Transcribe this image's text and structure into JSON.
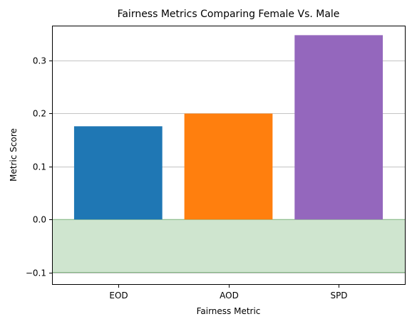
{
  "chart_data": {
    "type": "bar",
    "title": "Fairness Metrics Comparing Female Vs. Male",
    "xlabel": "Fairness Metric",
    "ylabel": "Metric Score",
    "categories": [
      "EOD",
      "AOD",
      "SPD"
    ],
    "values": [
      0.176,
      0.2,
      0.348
    ],
    "colors": [
      "#1f77b4",
      "#ff7f0e",
      "#9467bd"
    ],
    "ylim": [
      -0.122,
      0.366
    ],
    "yticks": [
      -0.1,
      0.0,
      0.1,
      0.2,
      0.3
    ],
    "ytick_labels": [
      "−0.1",
      "0.0",
      "0.1",
      "0.2",
      "0.3"
    ],
    "grid": "y",
    "shaded_band": {
      "from": -0.1,
      "to": 0.0,
      "color": "#cfe5cf",
      "edge_color": "#7fb47f"
    }
  }
}
